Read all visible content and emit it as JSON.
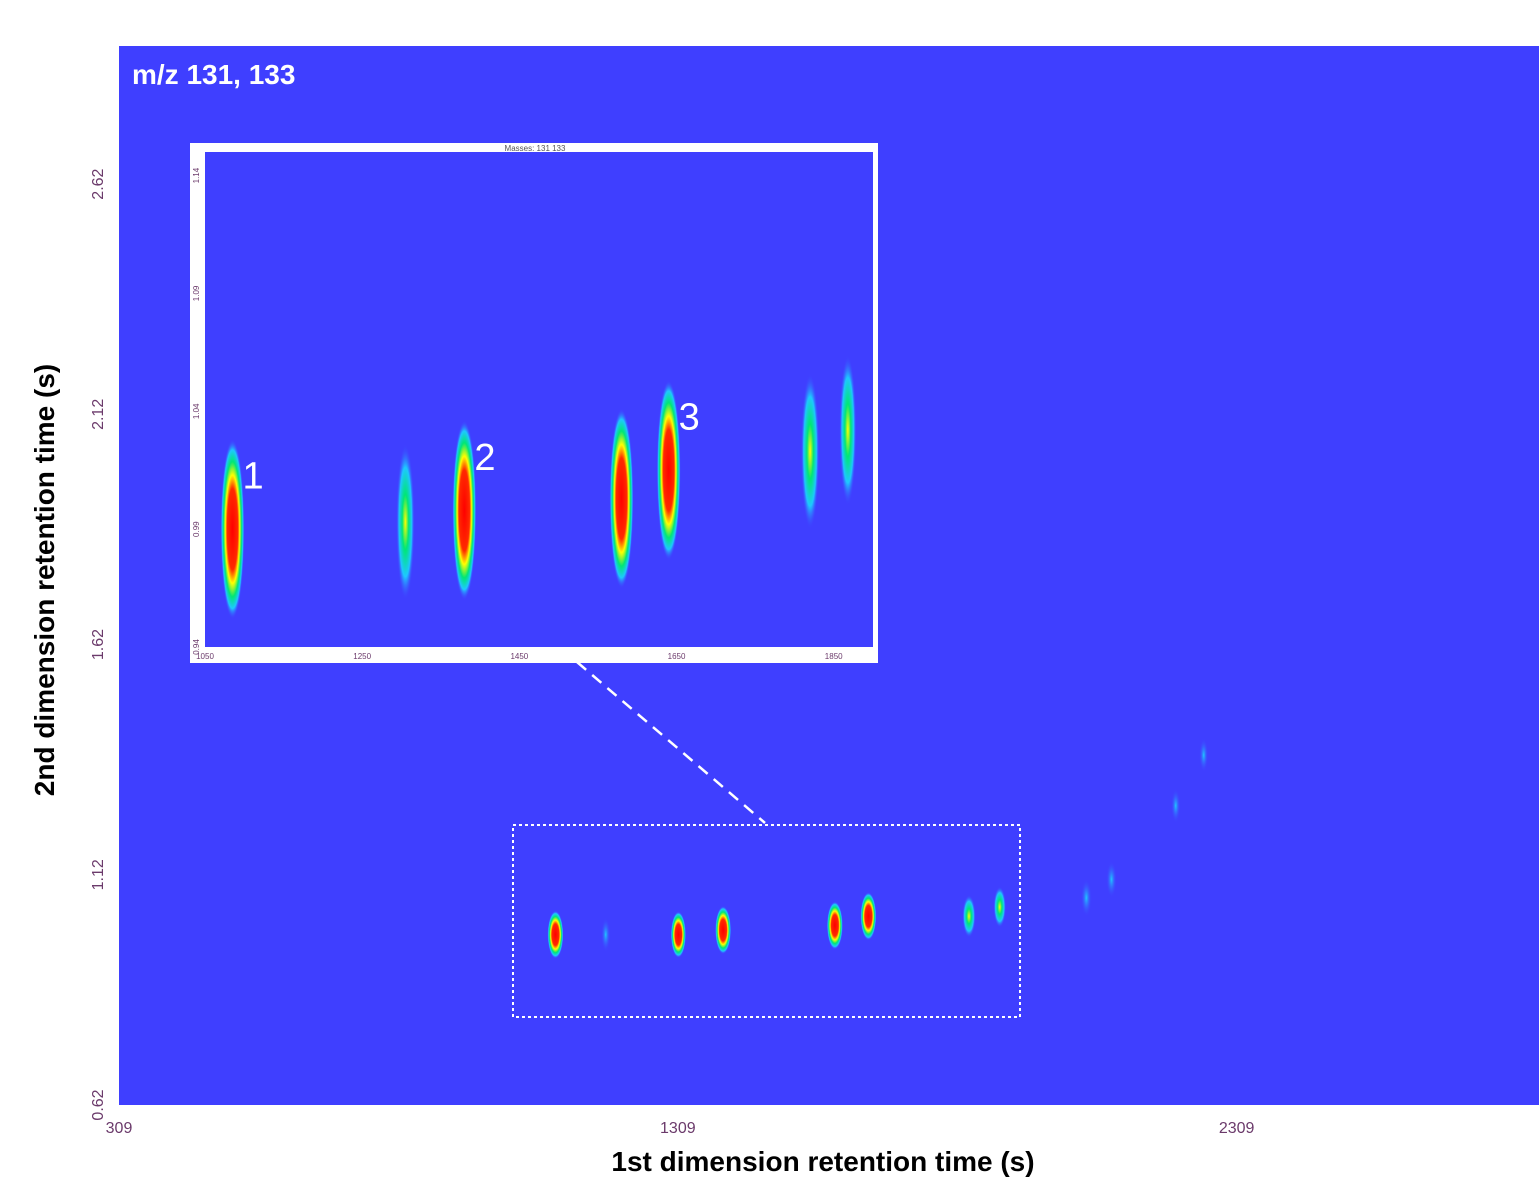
{
  "chart_data": [
    {
      "type": "heatmap",
      "label": "m/z 131, 133",
      "xlabel": "1st dimension retention time (s)",
      "ylabel": "2nd dimension retention time (s)",
      "xlim": [
        309,
        2850
      ],
      "ylim": [
        0.62,
        2.92
      ],
      "x_ticks": [
        "309",
        "1309",
        "2309"
      ],
      "x_tick_values": [
        309,
        1309,
        2309
      ],
      "y_ticks": [
        "0.62",
        "1.12",
        "1.62",
        "2.12",
        "2.62"
      ],
      "y_tick_values": [
        0.62,
        1.12,
        1.62,
        2.12,
        2.62
      ],
      "colors": {
        "background": "#3f3fff",
        "low": "#1e90ff",
        "mid": "#00e676",
        "high": "#ffff00",
        "max": "#ff0000"
      },
      "peaks": [
        {
          "x": 1090,
          "y": 0.99,
          "intensity": 1.0
        },
        {
          "x": 1180,
          "y": 0.99,
          "intensity": 0.15
        },
        {
          "x": 1310,
          "y": 0.99,
          "intensity": 0.9
        },
        {
          "x": 1390,
          "y": 1.0,
          "intensity": 1.0
        },
        {
          "x": 1590,
          "y": 1.01,
          "intensity": 1.0
        },
        {
          "x": 1650,
          "y": 1.03,
          "intensity": 1.0
        },
        {
          "x": 1830,
          "y": 1.03,
          "intensity": 0.65
        },
        {
          "x": 1885,
          "y": 1.05,
          "intensity": 0.55
        },
        {
          "x": 2040,
          "y": 1.07,
          "intensity": 0.35
        },
        {
          "x": 2085,
          "y": 1.11,
          "intensity": 0.3
        },
        {
          "x": 2200,
          "y": 1.27,
          "intensity": 0.15
        },
        {
          "x": 2250,
          "y": 1.38,
          "intensity": 0.12
        }
      ]
    },
    {
      "type": "heatmap",
      "title": "Masses: 131 133",
      "xlim": [
        1050,
        1900
      ],
      "ylim": [
        0.94,
        1.15
      ],
      "x_ticks": [
        "1050",
        "1250",
        "1450",
        "1650",
        "1850"
      ],
      "x_tick_values": [
        1050,
        1250,
        1450,
        1650,
        1850
      ],
      "y_ticks": [
        "0.94",
        "0.99",
        "1.04",
        "1.09",
        "1.14"
      ],
      "y_tick_values": [
        0.94,
        0.99,
        1.04,
        1.09,
        1.14
      ],
      "peaks": [
        {
          "x": 1085,
          "y": 0.99,
          "intensity": 1.0,
          "label": "1"
        },
        {
          "x": 1305,
          "y": 0.993,
          "intensity": 0.6
        },
        {
          "x": 1380,
          "y": 0.998,
          "intensity": 1.0,
          "label": "2"
        },
        {
          "x": 1580,
          "y": 1.003,
          "intensity": 1.0
        },
        {
          "x": 1640,
          "y": 1.015,
          "intensity": 1.0,
          "label": "3"
        },
        {
          "x": 1820,
          "y": 1.023,
          "intensity": 0.6
        },
        {
          "x": 1868,
          "y": 1.032,
          "intensity": 0.5
        }
      ]
    }
  ]
}
